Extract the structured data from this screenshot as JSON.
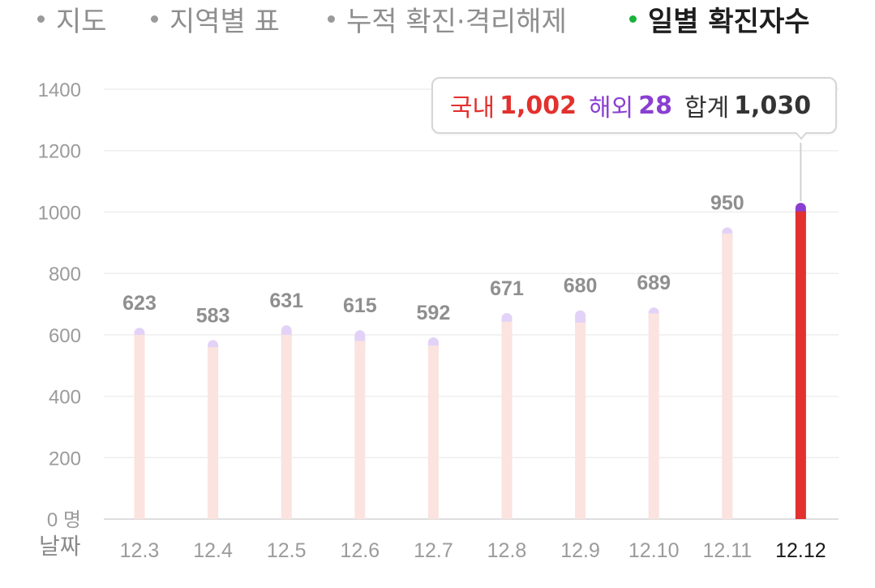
{
  "tabs": [
    {
      "label": "지도",
      "active": false
    },
    {
      "label": "지역별 표",
      "active": false
    },
    {
      "label": "누적 확진·격리해제",
      "active": false
    },
    {
      "label": "일별 확진자수",
      "active": true
    }
  ],
  "tooltip": {
    "domestic_label": "국내",
    "domestic_value": "1,002",
    "overseas_label": "해외",
    "overseas_value": "28",
    "total_label": "합계",
    "total_value": "1,030"
  },
  "colors": {
    "domestic": "#e2312e",
    "overseas": "#8a3fd1",
    "bar_faded": "#fbe3df",
    "cap_faded": "#e3d2f7",
    "active_tab_dot": "#19b23b"
  },
  "chart_data": {
    "type": "bar",
    "title": "",
    "xlabel": "날짜",
    "ylabel": "",
    "y_unit": "명",
    "ylim": [
      0,
      1400
    ],
    "yticks": [
      0,
      200,
      400,
      600,
      800,
      1000,
      1200,
      1400
    ],
    "grid": true,
    "categories": [
      "12.3",
      "12.4",
      "12.5",
      "12.6",
      "12.7",
      "12.8",
      "12.9",
      "12.10",
      "12.11",
      "12.12"
    ],
    "totals": [
      623,
      583,
      631,
      615,
      592,
      671,
      680,
      689,
      950,
      1030
    ],
    "data_labels": [
      "623",
      "583",
      "631",
      "615",
      "592",
      "671",
      "680",
      "689",
      "950",
      ""
    ],
    "series": [
      {
        "name": "국내",
        "values": [
          600,
          560,
          600,
          580,
          565,
          643,
          640,
          670,
          930,
          1002
        ]
      },
      {
        "name": "해외",
        "values": [
          23,
          23,
          31,
          35,
          27,
          28,
          40,
          19,
          20,
          28
        ]
      }
    ],
    "highlighted_index": 9
  }
}
